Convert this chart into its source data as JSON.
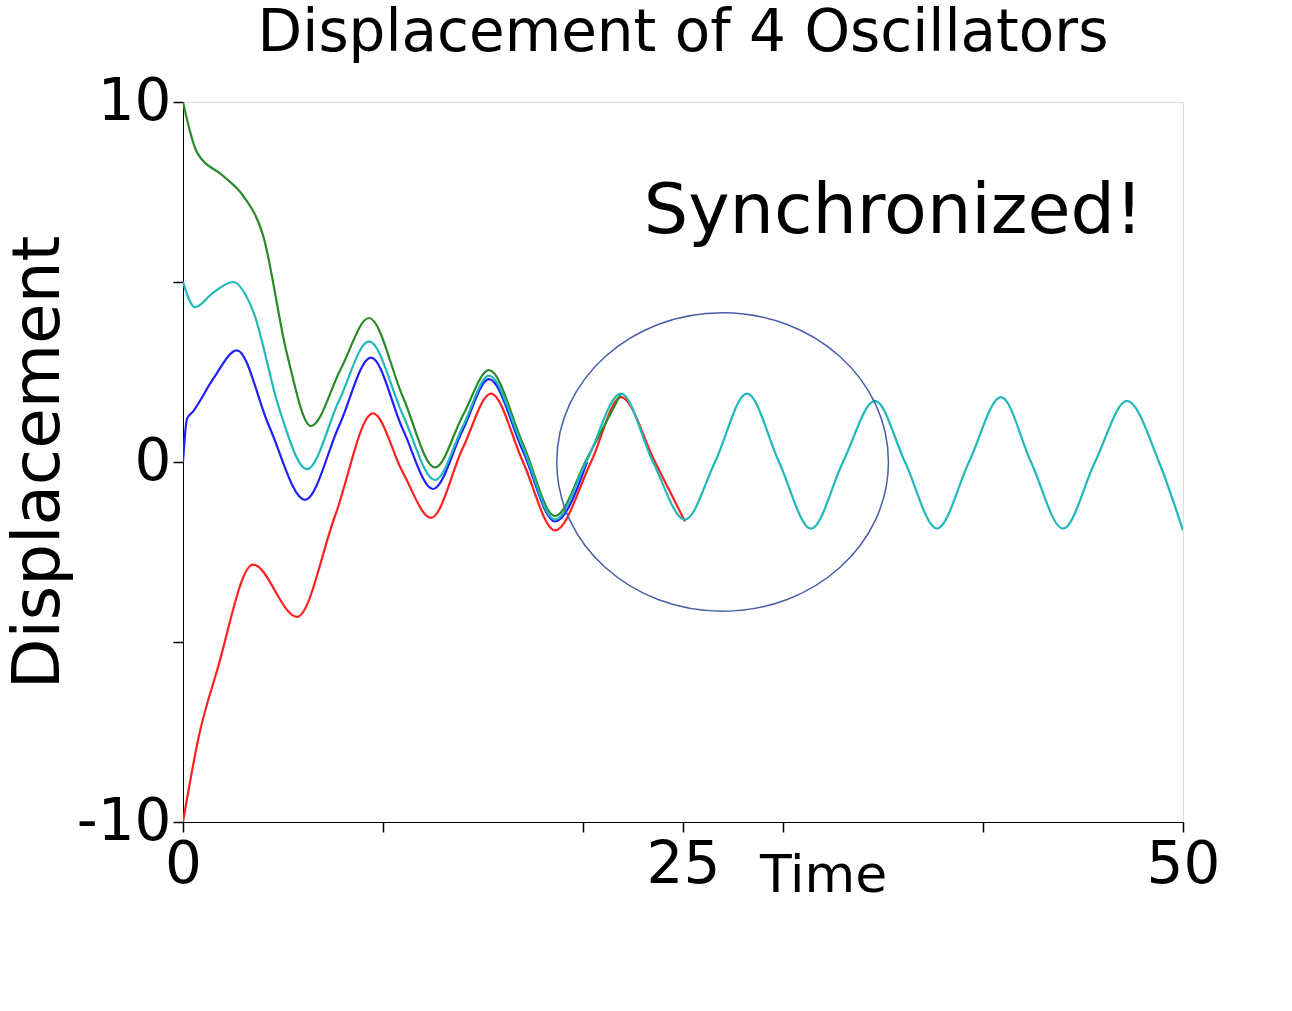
{
  "chart_data": {
    "type": "line",
    "title": "Displacement of 4 Oscillators",
    "xlabel": "Time",
    "ylabel": "Displacement",
    "annotations": [
      "Synchronized!"
    ],
    "xlim": [
      0,
      50
    ],
    "ylim": [
      -10,
      10
    ],
    "xticks": [
      0,
      {
        "value": 10,
        "label": null
      },
      {
        "value": 20,
        "label": null
      },
      25,
      {
        "value": 30,
        "label": null
      },
      {
        "value": 40,
        "label": null
      },
      50
    ],
    "yticks": [
      -10,
      {
        "value": -5,
        "label": null
      },
      0,
      {
        "value": 5,
        "label": null
      },
      10
    ],
    "grid": false,
    "marker": "none",
    "line_style": "solid",
    "series": [
      {
        "color": "#ff2020",
        "x": [
          0,
          0.8,
          1.7,
          3.5,
          5.7,
          7.6,
          9.5,
          11.0,
          12.4,
          14.0,
          15.4,
          17.0,
          18.6,
          20.4,
          21.9,
          23.6,
          25.1
        ],
        "values": [
          -10,
          -7.6,
          -5.8,
          -2.85,
          -4.3,
          -1.5,
          1.35,
          -0.3,
          -1.55,
          0.4,
          1.9,
          0,
          -1.9,
          0,
          1.8,
          0,
          -1.65
        ]
      },
      {
        "color": "#2020ff",
        "x": [
          0,
          0.2,
          0.5,
          1.5,
          2.7,
          4.3,
          6.1,
          7.8,
          9.4,
          11.0,
          12.5,
          14.0,
          15.3,
          17.0,
          18.6,
          20.2
        ],
        "values": [
          0,
          1.2,
          1.4,
          2.3,
          3.1,
          1.0,
          -1.05,
          1.0,
          2.9,
          0.9,
          -0.75,
          0.9,
          2.3,
          0.3,
          -1.65,
          0
        ]
      },
      {
        "color": "#2a8a2a",
        "x": [
          0,
          0.7,
          2.0,
          3.0,
          4.0,
          5.2,
          6.4,
          7.9,
          9.3,
          11.0,
          12.6,
          14.0,
          15.3,
          17.0,
          18.6,
          20.2,
          21.9
        ],
        "values": [
          10,
          8.6,
          7.95,
          7.4,
          6.3,
          3.0,
          1.0,
          2.6,
          4.0,
          1.8,
          -0.15,
          1.3,
          2.55,
          0.5,
          -1.5,
          0.1,
          1.9
        ]
      },
      {
        "color": "#20b8b8",
        "x": [
          0,
          0.6,
          1.5,
          2.5,
          3.5,
          4.8,
          6.2,
          7.8,
          9.3,
          11.0,
          12.6,
          14.0,
          15.3,
          17.0,
          18.6,
          20.2,
          21.9,
          23.5,
          25.1,
          26.6,
          28.2,
          29.8,
          31.4,
          33.0,
          34.6,
          36.1,
          37.7,
          39.3,
          40.9,
          42.4,
          44.0,
          45.6,
          47.2,
          48.8,
          50
        ],
        "values": [
          5.0,
          4.3,
          4.7,
          5.0,
          4.2,
          1.5,
          -0.2,
          1.7,
          3.35,
          1.3,
          -0.5,
          1.0,
          2.4,
          0.4,
          -1.6,
          0.05,
          1.9,
          0,
          -1.6,
          0,
          1.9,
          0,
          -1.85,
          0,
          1.7,
          0,
          -1.85,
          0,
          1.8,
          0,
          -1.85,
          0,
          1.7,
          0,
          -1.9
        ]
      }
    ]
  }
}
